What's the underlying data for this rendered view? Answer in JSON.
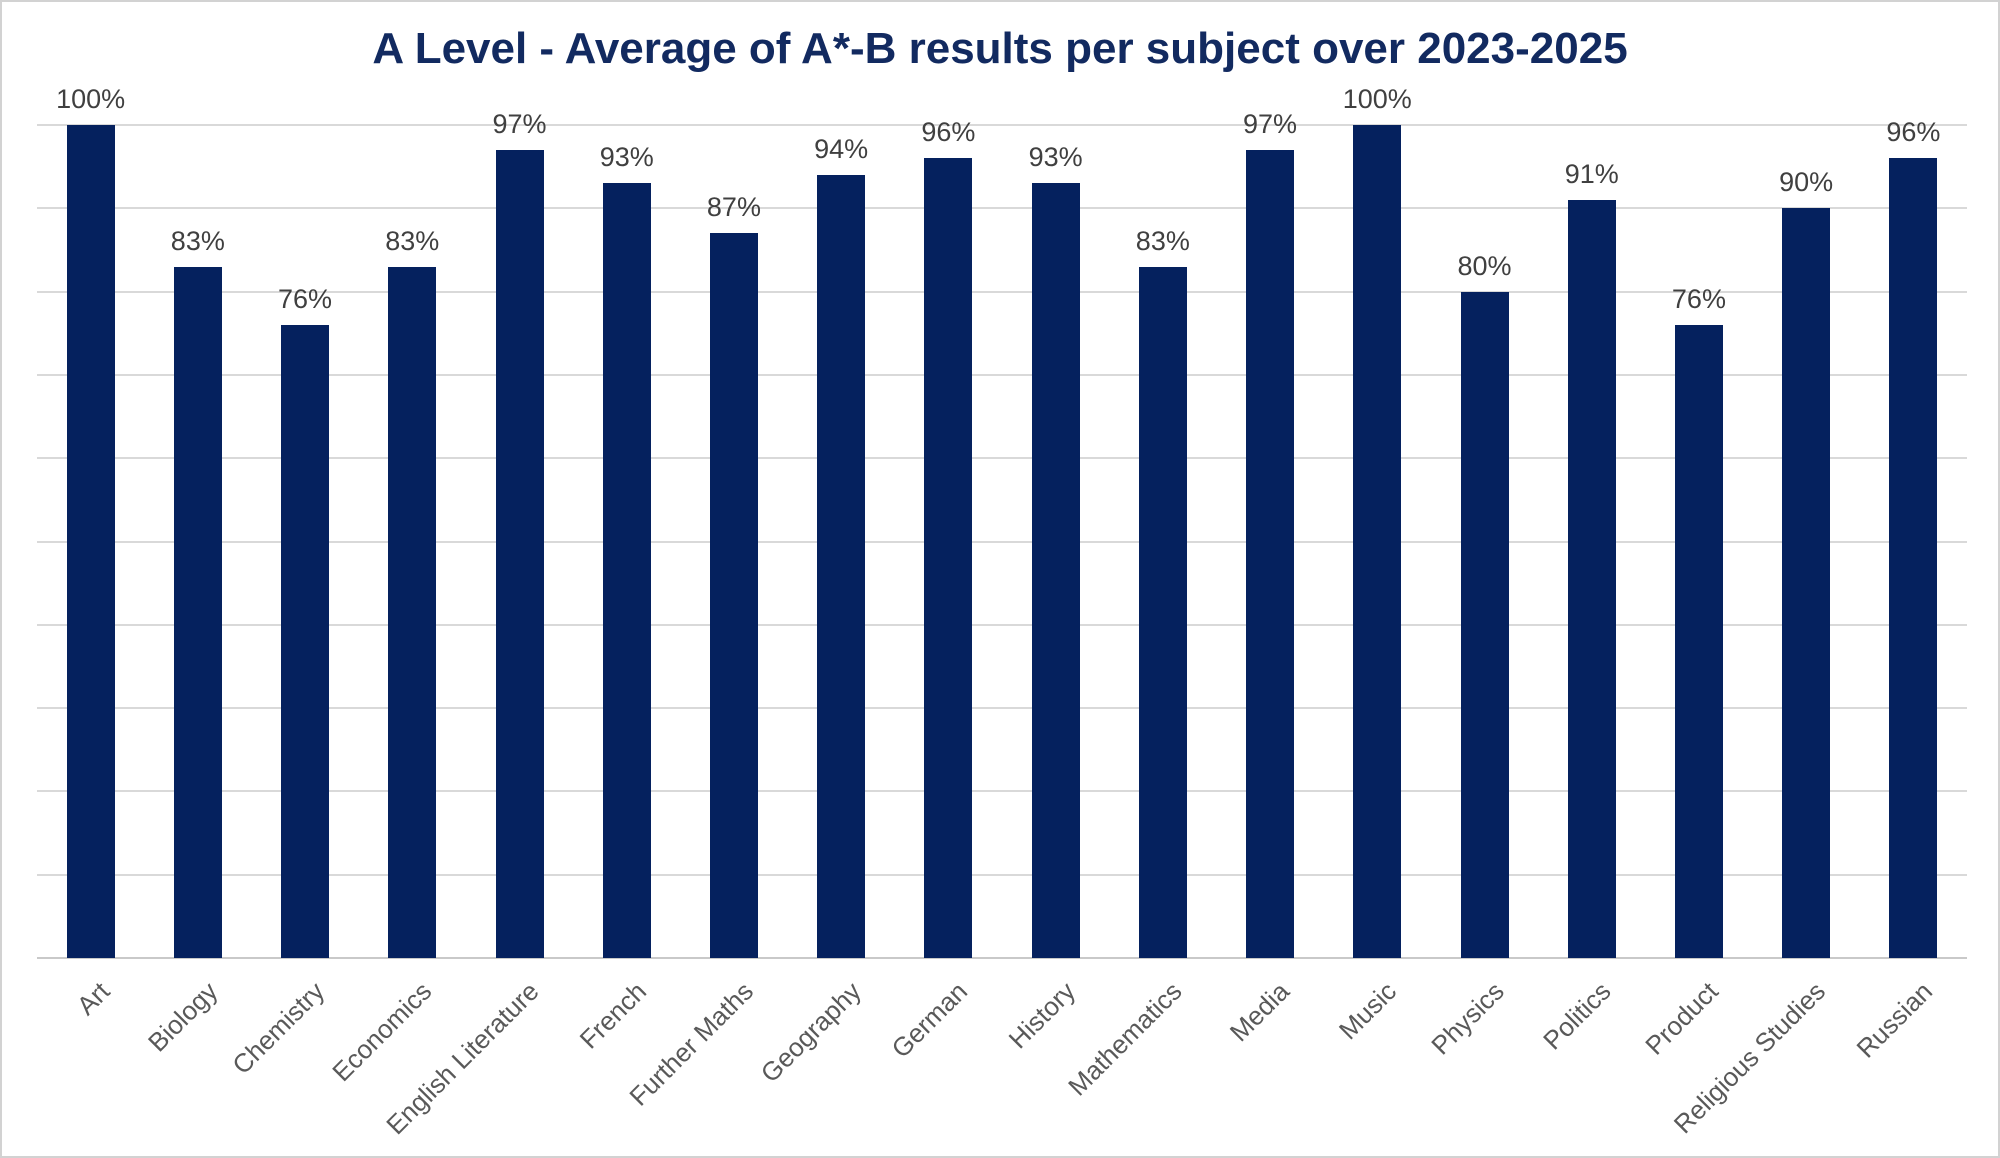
{
  "chart_data": {
    "type": "bar",
    "title": "A Level - Average of A*-B results per subject over 2023-2025",
    "categories": [
      "Art",
      "Biology",
      "Chemistry",
      "Economics",
      "English Literature",
      "French",
      "Further Maths",
      "Geography",
      "German",
      "History",
      "Mathematics",
      "Media",
      "Music",
      "Physics",
      "Politics",
      "Product",
      "Religious Studies",
      "Russian"
    ],
    "values": [
      100,
      83,
      76,
      83,
      97,
      93,
      87,
      94,
      96,
      93,
      83,
      97,
      100,
      80,
      91,
      76,
      90,
      96
    ],
    "data_labels": [
      "100%",
      "83%",
      "76%",
      "83%",
      "97%",
      "93%",
      "87%",
      "94%",
      "96%",
      "93%",
      "83%",
      "97%",
      "100%",
      "80%",
      "91%",
      "76%",
      "90%",
      "96%"
    ],
    "xlabel": "",
    "ylabel": "",
    "ylim": [
      0,
      100
    ],
    "grid_step": 10,
    "grid": true,
    "legend": "none",
    "x_tick_rotation_deg": 45
  },
  "colors": {
    "bar": "#05215E",
    "title": "#122A60",
    "data_label": "#404040",
    "tick_label": "#595959",
    "gridline": "#D9D9D9",
    "axis_line": "#C9C9C9",
    "background": "#FFFFFF",
    "frame_border": "#D2D2D2"
  }
}
